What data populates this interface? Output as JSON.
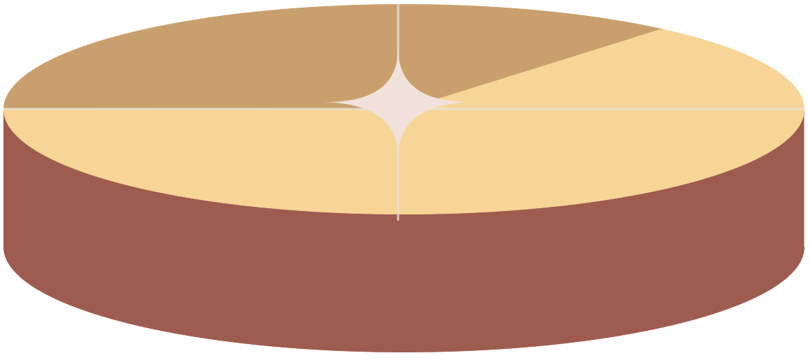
{
  "chart_data": {
    "type": "pie",
    "values": [
      64,
      36
    ],
    "colors": [
      "#f7d596",
      "#c9a06d"
    ]
  }
}
